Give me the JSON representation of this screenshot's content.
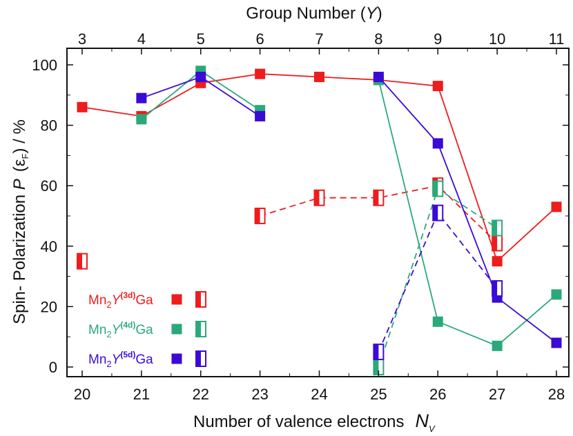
{
  "chart_data": {
    "type": "line",
    "title": "",
    "xlabel": "Number of valence electrons",
    "xlabel_symbol": "N",
    "xlabel_symbol_sub": "V",
    "ylabel": "Spin- Polarization",
    "ylabel_symbol": "P",
    "ylabel_arg_open": "(",
    "ylabel_arg": "ε",
    "ylabel_arg_sub": "F",
    "ylabel_arg_close": ")",
    "ylabel_unit": "/ %",
    "x2label": "Group Number",
    "x2label_open": "(",
    "x2label_symbol": "Y",
    "x2label_close": ")",
    "xlim": [
      20,
      28
    ],
    "ylim": [
      0,
      100
    ],
    "x_ticks": [
      "20",
      "21",
      "22",
      "23",
      "24",
      "25",
      "26",
      "27",
      "28"
    ],
    "x2_ticks": [
      "3",
      "4",
      "5",
      "6",
      "7",
      "8",
      "9",
      "10",
      "11"
    ],
    "y_ticks": [
      "0",
      "20",
      "40",
      "60",
      "80",
      "100"
    ],
    "legend_position": "bottom-left",
    "series": [
      {
        "name": "Mn2Y(3d)Ga",
        "legend_main": "Mn",
        "legend_sub": "2",
        "legend_y": "Y",
        "legend_sup": "(3d)",
        "legend_tail": "Ga",
        "color": "#ee1c1c",
        "filled": {
          "x": [
            20,
            21,
            22,
            23,
            24,
            25,
            26,
            27,
            28
          ],
          "y": [
            86,
            83,
            94,
            97,
            96,
            95,
            93,
            35,
            53
          ]
        },
        "half_filled": {
          "x": [
            20,
            23,
            24,
            25,
            26,
            27
          ],
          "y": [
            35,
            50,
            56,
            56,
            60,
            41
          ]
        }
      },
      {
        "name": "Mn2Y(4d)Ga",
        "legend_main": "Mn",
        "legend_sub": "2",
        "legend_y": "Y",
        "legend_sup": "(4d)",
        "legend_tail": "Ga",
        "color": "#2aa97b",
        "filled": {
          "x": [
            21,
            22,
            23,
            25,
            26,
            27,
            28
          ],
          "y": [
            82,
            98,
            85,
            95,
            15,
            7,
            24
          ]
        },
        "half_filled": {
          "x": [
            25,
            26,
            27
          ],
          "y": [
            0,
            59,
            46
          ]
        }
      },
      {
        "name": "Mn2Y(5d)Ga",
        "legend_main": "Mn",
        "legend_sub": "2",
        "legend_y": "Y",
        "legend_sup": "(5d)",
        "legend_tail": "Ga",
        "color": "#3a0ad6",
        "filled": {
          "x": [
            21,
            22,
            23,
            25,
            26,
            27,
            28
          ],
          "y": [
            89,
            96,
            83,
            96,
            74,
            23,
            8
          ]
        },
        "half_filled": {
          "x": [
            25,
            26,
            27
          ],
          "y": [
            5,
            51,
            26
          ]
        }
      }
    ]
  }
}
